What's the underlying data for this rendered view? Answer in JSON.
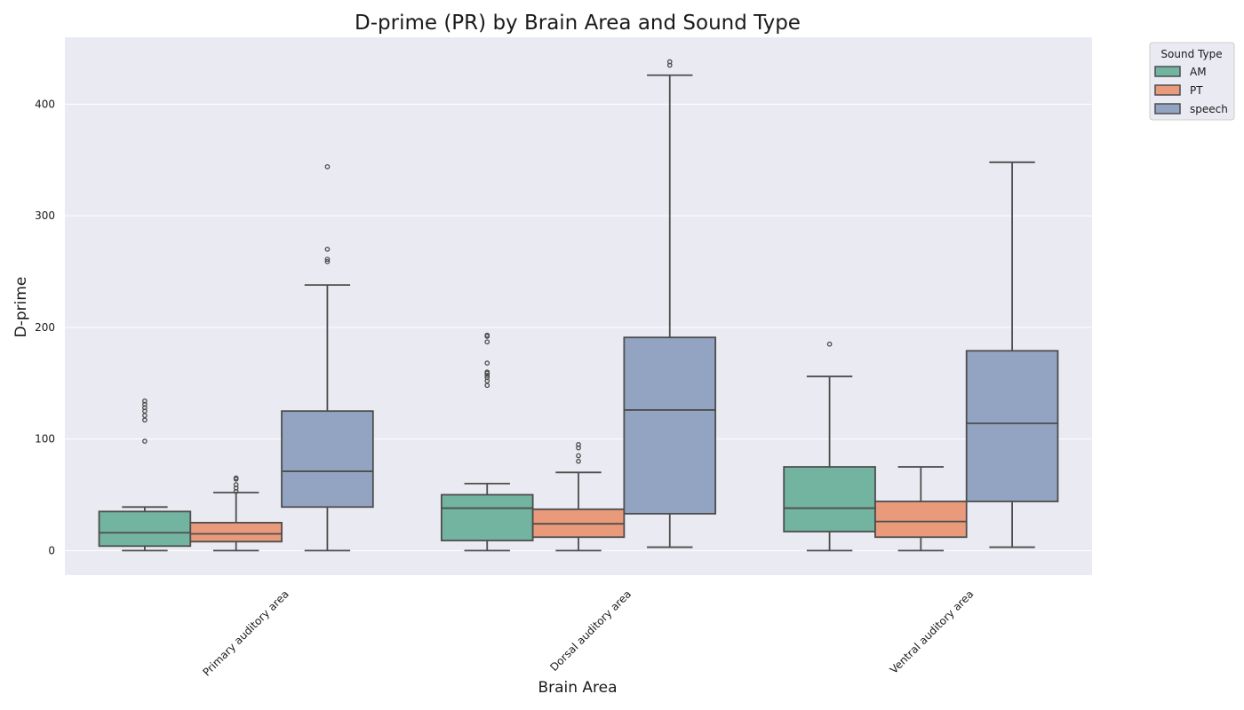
{
  "chart_data": {
    "type": "boxplot",
    "title": "D-prime (PR) by Brain Area and Sound Type",
    "xlabel": "Brain Area",
    "ylabel": "D-prime",
    "ylim": [
      -22,
      460
    ],
    "yticks": [
      0,
      100,
      200,
      300,
      400
    ],
    "grid": true,
    "legend_placement": "outside-top-right",
    "legend_title": "Sound Type",
    "categories": [
      "Primary auditory area",
      "Dorsal auditory area",
      "Ventral auditory area"
    ],
    "series": [
      {
        "name": "AM",
        "color": "#72b4a0",
        "boxes": [
          {
            "whisker_low": 0,
            "q1": 4,
            "median": 16,
            "q3": 35,
            "whisker_high": 39,
            "outliers": [
              98,
              117,
              121,
              125,
              128,
              131,
              134
            ]
          },
          {
            "whisker_low": 0,
            "q1": 9,
            "median": 38,
            "q3": 50,
            "whisker_high": 60,
            "outliers": [
              148,
              152,
              155,
              157,
              159,
              160,
              168,
              187,
              192,
              193
            ]
          },
          {
            "whisker_low": 0,
            "q1": 17,
            "median": 38,
            "q3": 75,
            "whisker_high": 156,
            "outliers": [
              185
            ]
          }
        ]
      },
      {
        "name": "PT",
        "color": "#e99a7b",
        "boxes": [
          {
            "whisker_low": 0,
            "q1": 8,
            "median": 15,
            "q3": 25,
            "whisker_high": 52,
            "outliers": [
              53,
              56,
              59,
              64,
              65
            ]
          },
          {
            "whisker_low": 0,
            "q1": 12,
            "median": 24,
            "q3": 37,
            "whisker_high": 70,
            "outliers": [
              80,
              85,
              92,
              95
            ]
          },
          {
            "whisker_low": 0,
            "q1": 12,
            "median": 26,
            "q3": 44,
            "whisker_high": 75,
            "outliers": []
          }
        ]
      },
      {
        "name": "speech",
        "color": "#93a4c3",
        "boxes": [
          {
            "whisker_low": 0,
            "q1": 39,
            "median": 71,
            "q3": 125,
            "whisker_high": 238,
            "outliers": [
              259,
              261,
              270,
              344
            ]
          },
          {
            "whisker_low": 3,
            "q1": 33,
            "median": 126,
            "q3": 191,
            "whisker_high": 426,
            "outliers": [
              435,
              438
            ]
          },
          {
            "whisker_low": 3,
            "q1": 44,
            "median": 114,
            "q3": 179,
            "whisker_high": 348,
            "outliers": []
          }
        ]
      }
    ]
  }
}
